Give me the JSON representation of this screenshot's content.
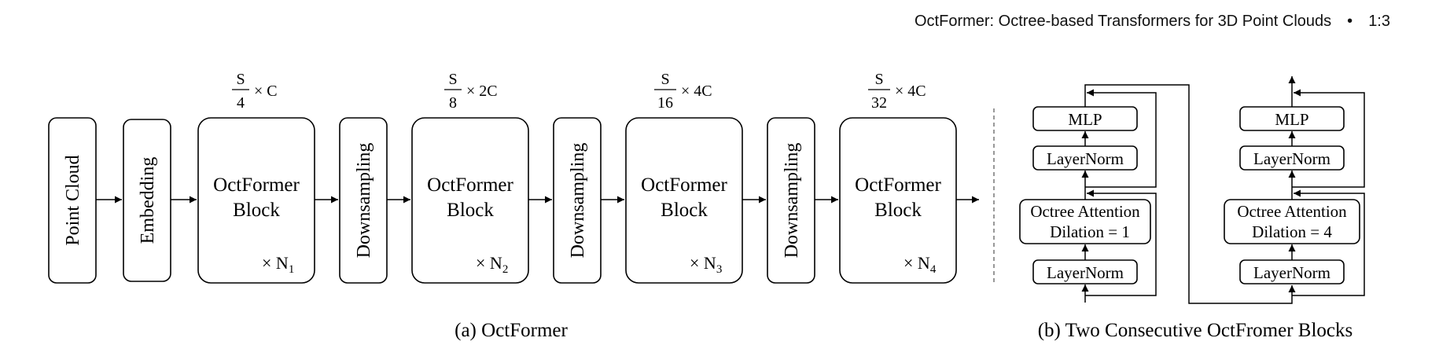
{
  "header": {
    "paper_title": "OctFormer: Octree-based Transformers for 3D Point Clouds",
    "separator": "•",
    "figure_ref": "1:3"
  },
  "pipeline": {
    "input_label": "Point Cloud",
    "embedding_label": "Embedding",
    "downsampling_label": "Downsampling",
    "block_line1": "OctFormer",
    "block_line2": "Block",
    "stages": [
      {
        "size_num": "S",
        "size_den": "4",
        "channels": "× C",
        "repeat_symbol": "×",
        "repeat_var": "N",
        "repeat_sub": "1"
      },
      {
        "size_num": "S",
        "size_den": "8",
        "channels": "× 2C",
        "repeat_symbol": "×",
        "repeat_var": "N",
        "repeat_sub": "2"
      },
      {
        "size_num": "S",
        "size_den": "16",
        "channels": "× 4C",
        "repeat_symbol": "×",
        "repeat_var": "N",
        "repeat_sub": "3"
      },
      {
        "size_num": "S",
        "size_den": "32",
        "channels": "× 4C",
        "repeat_symbol": "×",
        "repeat_var": "N",
        "repeat_sub": "4"
      }
    ],
    "caption": "(a) OctFormer"
  },
  "blocks_detail": {
    "mlp_label": "MLP",
    "layernorm_label": "LayerNorm",
    "attention_label": "Octree Attention",
    "left_dilation": "Dilation = 1",
    "right_dilation": "Dilation =  4",
    "caption": "(b) Two Consecutive OctFromer Blocks"
  }
}
